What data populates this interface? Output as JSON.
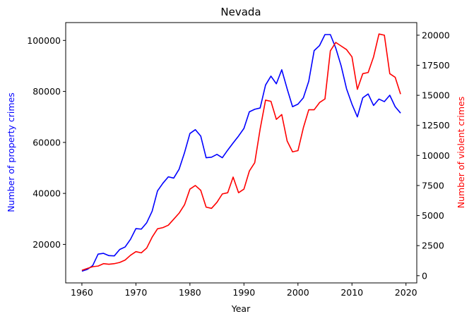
{
  "chart_data": {
    "type": "line",
    "title": "Nevada",
    "xlabel": "Year",
    "ylabel": "Number of property crimes",
    "ylabel_right": "Number of violent crimes",
    "xlim": [
      1957,
      2022
    ],
    "ylim": [
      4900,
      107000
    ],
    "ylim_right": [
      -600,
      21050
    ],
    "x_ticks": [
      1960,
      1970,
      1980,
      1990,
      2000,
      2010,
      2020
    ],
    "y_ticks": [
      20000,
      40000,
      60000,
      80000,
      100000
    ],
    "y_ticks_right": [
      0,
      2500,
      5000,
      7500,
      10000,
      12500,
      15000,
      17500,
      20000
    ],
    "grid": false,
    "x": [
      1960,
      1961,
      1962,
      1963,
      1964,
      1965,
      1966,
      1967,
      1968,
      1969,
      1970,
      1971,
      1972,
      1973,
      1974,
      1975,
      1976,
      1977,
      1978,
      1979,
      1980,
      1981,
      1982,
      1983,
      1984,
      1985,
      1986,
      1987,
      1988,
      1989,
      1990,
      1991,
      1992,
      1993,
      1994,
      1995,
      1996,
      1997,
      1998,
      1999,
      2000,
      2001,
      2002,
      2003,
      2004,
      2005,
      2006,
      2007,
      2008,
      2009,
      2010,
      2011,
      2012,
      2013,
      2014,
      2015,
      2016,
      2017,
      2018,
      2019
    ],
    "series": [
      {
        "name": "Number of property crimes",
        "axis": "left",
        "color": "#0000ff",
        "values": [
          9500,
          10200,
          11700,
          16200,
          16500,
          15600,
          15500,
          18000,
          19000,
          22000,
          26200,
          26000,
          28500,
          33000,
          41000,
          44000,
          46500,
          46000,
          49500,
          56000,
          63500,
          65000,
          62500,
          54000,
          54200,
          55300,
          54000,
          57000,
          59800,
          62500,
          65500,
          72000,
          73000,
          73500,
          82500,
          86000,
          83000,
          88500,
          81000,
          74000,
          75000,
          77500,
          84000,
          96000,
          98000,
          102300,
          102300,
          97000,
          90000,
          81000,
          75000,
          70000,
          77500,
          79000,
          74500,
          77000,
          76000,
          78500,
          74000,
          71500
        ]
      },
      {
        "name": "Number of violent crimes",
        "axis": "right",
        "color": "#ff0000",
        "values": [
          450,
          600,
          750,
          800,
          1000,
          950,
          1000,
          1100,
          1300,
          1700,
          2000,
          1900,
          2300,
          3200,
          3900,
          4000,
          4200,
          4700,
          5200,
          5900,
          7200,
          7500,
          7100,
          5700,
          5600,
          6100,
          6800,
          6900,
          8200,
          6900,
          7200,
          8700,
          9400,
          12200,
          14600,
          14500,
          13000,
          13400,
          11200,
          10300,
          10400,
          12300,
          13800,
          13800,
          14400,
          14700,
          18700,
          19400,
          19100,
          18800,
          18200,
          15500,
          16800,
          16900,
          18200,
          20100,
          20000,
          16800,
          16500,
          15100
        ]
      }
    ]
  }
}
